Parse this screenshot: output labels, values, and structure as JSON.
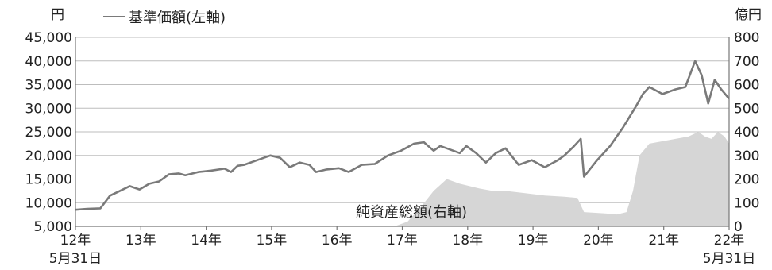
{
  "chart_data": {
    "type": "line",
    "left_unit": "円",
    "right_unit": "億円",
    "legend": {
      "line": "基準価額(左軸)",
      "area": "純資産総額(右軸)"
    },
    "x_ticks": [
      "12年",
      "13年",
      "14年",
      "15年",
      "16年",
      "17年",
      "18年",
      "19年",
      "20年",
      "21年",
      "22年"
    ],
    "x_start_sub": "5月31日",
    "x_end_sub": "5月31日",
    "y_left": {
      "min": 5000,
      "max": 45000,
      "ticks": [
        "5,000",
        "10,000",
        "15,000",
        "20,000",
        "25,000",
        "30,000",
        "35,000",
        "40,000",
        "45,000"
      ]
    },
    "y_right": {
      "min": 0,
      "max": 800,
      "ticks": [
        "0",
        "100",
        "200",
        "300",
        "400",
        "500",
        "600",
        "700",
        "800"
      ]
    },
    "grid": true,
    "series": [
      {
        "name": "基準価額(左軸)",
        "kind": "line",
        "axis": "left",
        "color": "#7a7a7a",
        "x": [
          2012.42,
          2012.6,
          2012.8,
          2012.95,
          2013.1,
          2013.25,
          2013.4,
          2013.55,
          2013.7,
          2013.85,
          2014.0,
          2014.1,
          2014.3,
          2014.5,
          2014.7,
          2014.8,
          2014.9,
          2015.0,
          2015.2,
          2015.4,
          2015.55,
          2015.7,
          2015.85,
          2016.0,
          2016.1,
          2016.25,
          2016.45,
          2016.6,
          2016.8,
          2017.0,
          2017.2,
          2017.4,
          2017.6,
          2017.75,
          2017.9,
          2018.0,
          2018.1,
          2018.3,
          2018.4,
          2018.55,
          2018.7,
          2018.85,
          2019.0,
          2019.2,
          2019.4,
          2019.6,
          2019.8,
          2019.9,
          2020.05,
          2020.15,
          2020.2,
          2020.4,
          2020.6,
          2020.8,
          2021.0,
          2021.1,
          2021.2,
          2021.4,
          2021.6,
          2021.75,
          2021.9,
          2022.0,
          2022.1,
          2022.2,
          2022.3,
          2022.42
        ],
        "values": [
          8500,
          8700,
          8800,
          11500,
          12500,
          13500,
          12800,
          14000,
          14500,
          16000,
          16200,
          15800,
          16500,
          16800,
          17200,
          16500,
          17800,
          18000,
          19000,
          20000,
          19500,
          17500,
          18500,
          18000,
          16500,
          17000,
          17300,
          16500,
          18000,
          18200,
          20000,
          21000,
          22500,
          22800,
          21000,
          22000,
          21500,
          20500,
          22000,
          20500,
          18500,
          20500,
          21500,
          18000,
          19000,
          17500,
          19000,
          20000,
          22000,
          23500,
          15500,
          19000,
          22000,
          26000,
          30500,
          33000,
          34500,
          33000,
          34000,
          34500,
          40000,
          37000,
          31000,
          36000,
          34000,
          32000
        ]
      },
      {
        "name": "純資産総額(右軸)",
        "kind": "area",
        "axis": "right",
        "color": "#d6d6d6",
        "x": [
          2012.42,
          2017.3,
          2017.5,
          2017.7,
          2017.9,
          2018.1,
          2018.3,
          2018.6,
          2018.8,
          2019.0,
          2019.3,
          2019.6,
          2019.9,
          2020.1,
          2020.2,
          2020.5,
          2020.7,
          2020.85,
          2020.95,
          2021.05,
          2021.2,
          2021.4,
          2021.6,
          2021.8,
          2021.95,
          2022.05,
          2022.15,
          2022.25,
          2022.35,
          2022.42
        ],
        "values": [
          0,
          0,
          20,
          80,
          150,
          200,
          180,
          160,
          150,
          150,
          140,
          130,
          125,
          120,
          60,
          55,
          50,
          60,
          150,
          300,
          350,
          360,
          370,
          380,
          400,
          380,
          370,
          400,
          380,
          350
        ]
      }
    ]
  }
}
